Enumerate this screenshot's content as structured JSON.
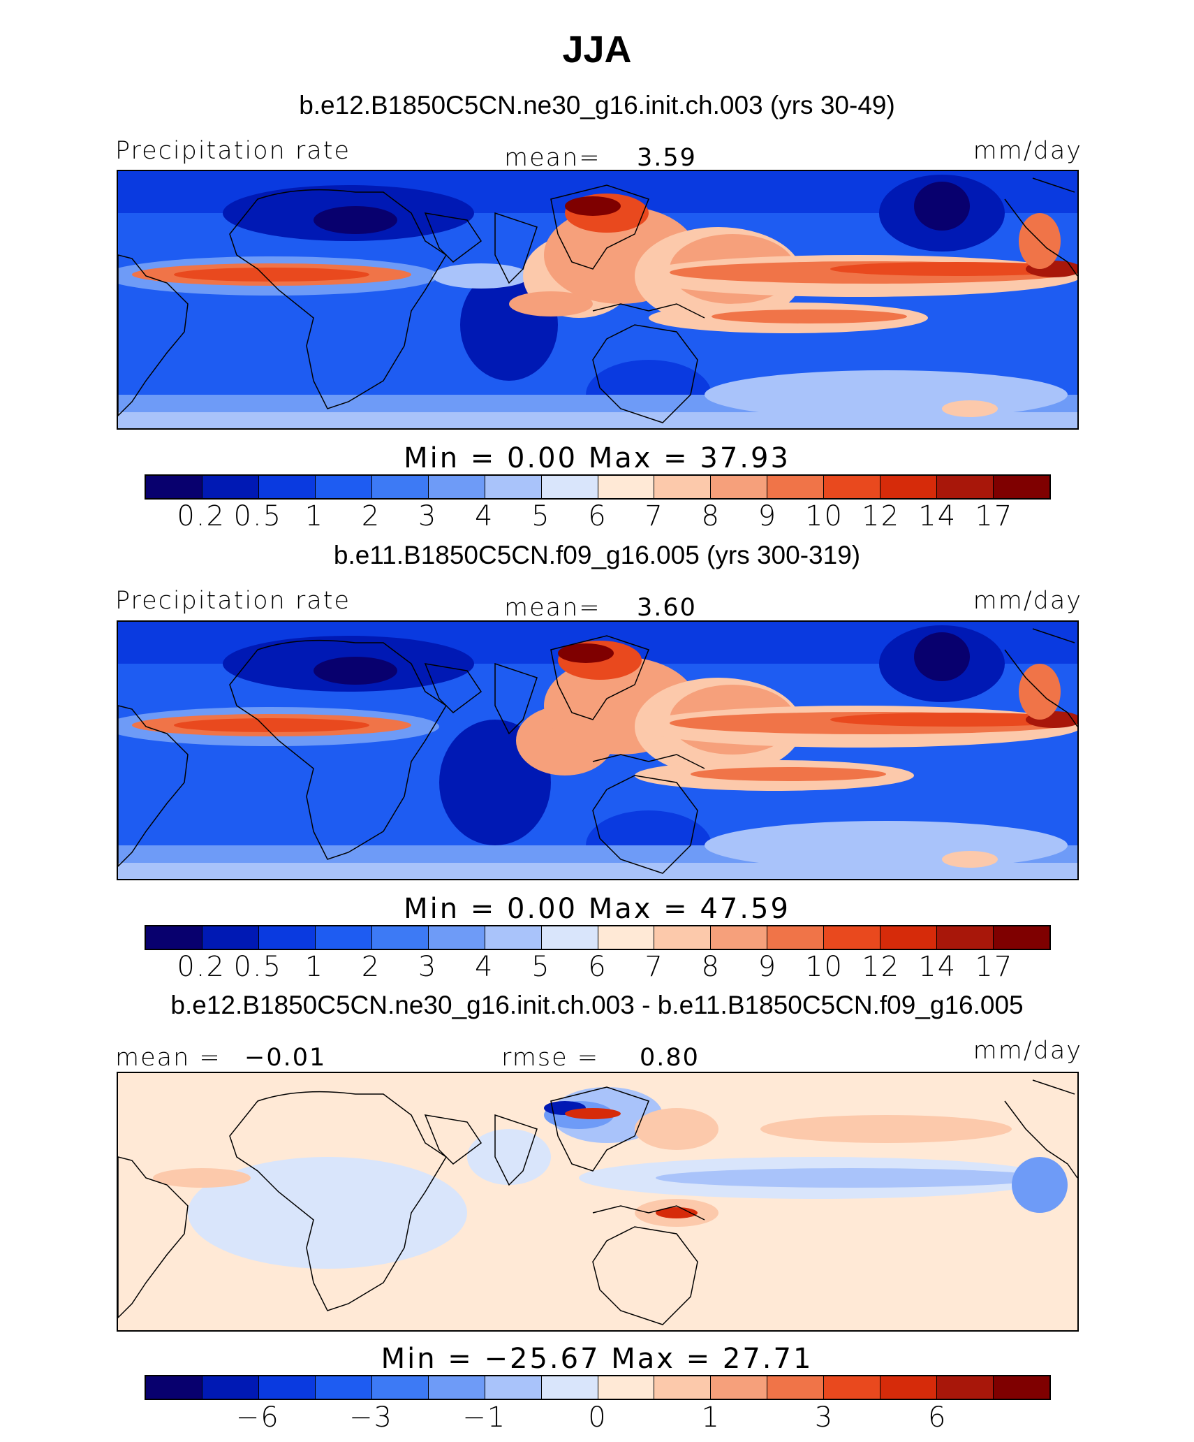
{
  "title": "JJA",
  "colors": {
    "abs": [
      "#08006e",
      "#0019b4",
      "#0a3ae0",
      "#1e5cf2",
      "#3d7af5",
      "#6e9bf7",
      "#a9c3fa",
      "#d9e5fb",
      "#ffe9d6",
      "#fcc9ab",
      "#f6a07b",
      "#f07448",
      "#e9491e",
      "#d62b0a",
      "#a8170a",
      "#7f0000"
    ],
    "diff": [
      "#08006e",
      "#0019b4",
      "#0a3ae0",
      "#1e5cf2",
      "#3d7af5",
      "#6e9bf7",
      "#a9c3fa",
      "#d9e5fb",
      "#ffe9d6",
      "#fcc9ab",
      "#f6a07b",
      "#f07448",
      "#e9491e",
      "#d62b0a",
      "#a8170a",
      "#7f0000"
    ]
  },
  "panels": [
    {
      "title": "b.e12.B1850C5CN.ne30_g16.init.ch.003 (yrs 30-49)",
      "left_label": "Precipitation rate",
      "mid_label": "mean=",
      "mid_value": "3.59",
      "units": "mm/day",
      "min_label": "Min  =     0.00  Max  =    37.93",
      "ticks": [
        "0.2",
        "0.5",
        "1",
        "2",
        "3",
        "4",
        "5",
        "6",
        "7",
        "8",
        "9",
        "10",
        "12",
        "14",
        "17"
      ]
    },
    {
      "title": "b.e11.B1850C5CN.f09_g16.005 (yrs 300-319)",
      "left_label": "Precipitation rate",
      "mid_label": "mean=",
      "mid_value": "3.60",
      "units": "mm/day",
      "min_label": "Min  =     0.00  Max  =    47.59",
      "ticks": [
        "0.2",
        "0.5",
        "1",
        "2",
        "3",
        "4",
        "5",
        "6",
        "7",
        "8",
        "9",
        "10",
        "12",
        "14",
        "17"
      ]
    },
    {
      "title": "b.e12.B1850C5CN.ne30_g16.init.ch.003 - b.e11.B1850C5CN.f09_g16.005",
      "left_label": "mean  =",
      "left_value": "−0.01",
      "mid_label": "rmse  =",
      "mid_value": "0.80",
      "units": "mm/day",
      "min_label": "Min  = −25.67  Max  =    27.71",
      "ticks": [
        "−6",
        "−3",
        "−1",
        "0",
        "1",
        "3",
        "6"
      ]
    }
  ]
}
